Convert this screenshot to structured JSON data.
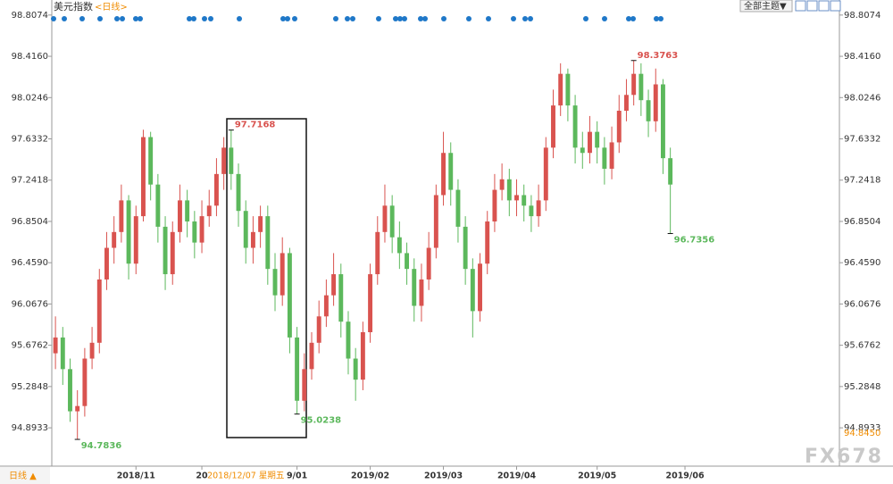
{
  "chart_data": {
    "type": "candlestick",
    "title": "美元指数",
    "subtitle": "<日线>",
    "up_color": "#d9534f",
    "down_color": "#5cb85c",
    "open": [
      95.6,
      95.75,
      95.45,
      95.05,
      95.1,
      95.55,
      95.7,
      96.3,
      96.6,
      96.75,
      97.05,
      96.45,
      96.9,
      97.65,
      97.2,
      96.8,
      96.35,
      96.75,
      97.05,
      96.85,
      96.65,
      96.9,
      97.0,
      97.3,
      97.55,
      97.3,
      96.95,
      96.6,
      96.75,
      96.9,
      96.4,
      96.15,
      96.55,
      95.75,
      95.15,
      95.45,
      95.7,
      95.95,
      96.15,
      96.35,
      95.9,
      95.55,
      95.35,
      95.8,
      96.35,
      96.75,
      97.0,
      96.7,
      96.55,
      96.4,
      96.05,
      96.3,
      96.6,
      97.1,
      97.5,
      97.15,
      96.8,
      96.4,
      96.0,
      96.45,
      96.85,
      97.15,
      97.25,
      97.05,
      97.1,
      97.0,
      96.9,
      97.05,
      97.55,
      97.95,
      98.25,
      97.95,
      97.55,
      97.5,
      97.7,
      97.55,
      97.35,
      97.6,
      97.9,
      98.05,
      98.25,
      98.0,
      97.8,
      98.15,
      97.45
    ],
    "high": [
      95.95,
      95.85,
      95.55,
      95.25,
      95.65,
      95.85,
      96.4,
      96.75,
      96.9,
      97.2,
      97.1,
      97.0,
      97.72,
      97.7,
      97.3,
      96.9,
      96.85,
      97.2,
      97.15,
      96.95,
      97.05,
      97.15,
      97.45,
      97.65,
      97.7168,
      97.4,
      97.05,
      96.9,
      97.0,
      97.0,
      96.55,
      96.7,
      96.6,
      95.85,
      95.6,
      95.8,
      96.1,
      96.3,
      96.55,
      96.45,
      96.0,
      95.65,
      95.9,
      96.45,
      96.9,
      97.2,
      97.1,
      96.85,
      96.65,
      96.5,
      96.45,
      96.75,
      97.2,
      97.7,
      97.6,
      97.25,
      96.9,
      96.5,
      96.55,
      96.95,
      97.3,
      97.4,
      97.35,
      97.25,
      97.2,
      97.1,
      97.2,
      97.65,
      98.1,
      98.35,
      98.3,
      98.05,
      97.7,
      97.85,
      97.8,
      97.65,
      97.75,
      98.05,
      98.2,
      98.3763,
      98.35,
      98.1,
      98.3,
      98.2,
      97.55
    ],
    "low": [
      95.45,
      95.3,
      94.95,
      94.7836,
      95.0,
      95.45,
      95.6,
      96.2,
      96.45,
      96.65,
      96.3,
      96.35,
      96.85,
      97.05,
      96.65,
      96.2,
      96.25,
      96.65,
      96.7,
      96.5,
      96.55,
      96.8,
      96.9,
      97.15,
      97.15,
      96.8,
      96.45,
      96.45,
      96.6,
      96.25,
      96.0,
      96.05,
      95.6,
      95.0238,
      95.05,
      95.35,
      95.6,
      95.85,
      96.05,
      95.75,
      95.4,
      95.15,
      95.25,
      95.7,
      96.25,
      96.65,
      96.55,
      96.4,
      96.25,
      95.9,
      95.9,
      96.2,
      96.5,
      97.0,
      97.0,
      96.65,
      96.25,
      95.75,
      95.9,
      96.35,
      96.75,
      97.05,
      96.9,
      96.9,
      96.85,
      96.75,
      96.8,
      96.95,
      97.45,
      97.85,
      97.8,
      97.4,
      97.35,
      97.4,
      97.4,
      97.2,
      97.25,
      97.5,
      97.8,
      97.95,
      97.85,
      97.65,
      97.7,
      97.3,
      96.7356
    ],
    "close": [
      95.75,
      95.45,
      95.05,
      95.1,
      95.55,
      95.7,
      96.3,
      96.6,
      96.75,
      97.05,
      96.45,
      96.9,
      97.65,
      97.2,
      96.8,
      96.35,
      96.75,
      97.05,
      96.85,
      96.65,
      96.9,
      97.0,
      97.3,
      97.55,
      97.3,
      96.95,
      96.6,
      96.75,
      96.9,
      96.4,
      96.15,
      96.55,
      95.75,
      95.15,
      95.45,
      95.7,
      95.95,
      96.15,
      96.35,
      95.9,
      95.55,
      95.35,
      95.8,
      96.35,
      96.75,
      97.0,
      96.7,
      96.55,
      96.4,
      96.05,
      96.3,
      96.6,
      97.1,
      97.5,
      97.15,
      96.8,
      96.4,
      96.0,
      96.45,
      96.85,
      97.15,
      97.25,
      97.05,
      97.1,
      97.0,
      96.9,
      97.05,
      97.55,
      97.95,
      98.25,
      97.95,
      97.55,
      97.5,
      97.7,
      97.55,
      97.35,
      97.6,
      97.9,
      98.05,
      98.25,
      98.0,
      97.8,
      98.15,
      97.45,
      97.2
    ],
    "xlim": [
      -0.5,
      107.1
    ],
    "ylim": [
      94.53,
      98.95
    ],
    "xticks": [
      {
        "value": 11,
        "label": "2018/11"
      },
      {
        "value": 20,
        "label": "20"
      },
      {
        "value": 33,
        "label": "9/01"
      },
      {
        "value": 43,
        "label": "2019/02"
      },
      {
        "value": 53,
        "label": "2019/03"
      },
      {
        "value": 63,
        "label": "2019/04"
      },
      {
        "value": 74,
        "label": "2019/05"
      },
      {
        "value": 86,
        "label": "2019/06"
      }
    ],
    "yticks": [
      98.8074,
      {
        "value": 98.416,
        "label": "98.4160"
      },
      98.0246,
      97.6332,
      97.2418,
      96.8504,
      {
        "value": 96.459,
        "label": "96.4590"
      },
      96.0676,
      95.6762,
      95.2848,
      94.8933
    ],
    "cursor": {
      "value": 26,
      "label": "2018/12/07 星期五"
    },
    "last_price": {
      "value": 94.845,
      "label": "94.8450"
    },
    "annotations": [
      {
        "value": 97.7168,
        "color": "#d9534f"
      },
      {
        "value": 95.0238,
        "color": "#5cb85c"
      },
      {
        "value": 94.7836,
        "color": "#5cb85c"
      },
      {
        "value": 98.3763,
        "color": "#d9534f"
      },
      {
        "value": 96.7356,
        "color": "#5cb85c"
      }
    ]
  },
  "ui": {
    "theme_button": "全部主题▼",
    "period_button": "日线 ▲",
    "watermark": "FX678"
  }
}
